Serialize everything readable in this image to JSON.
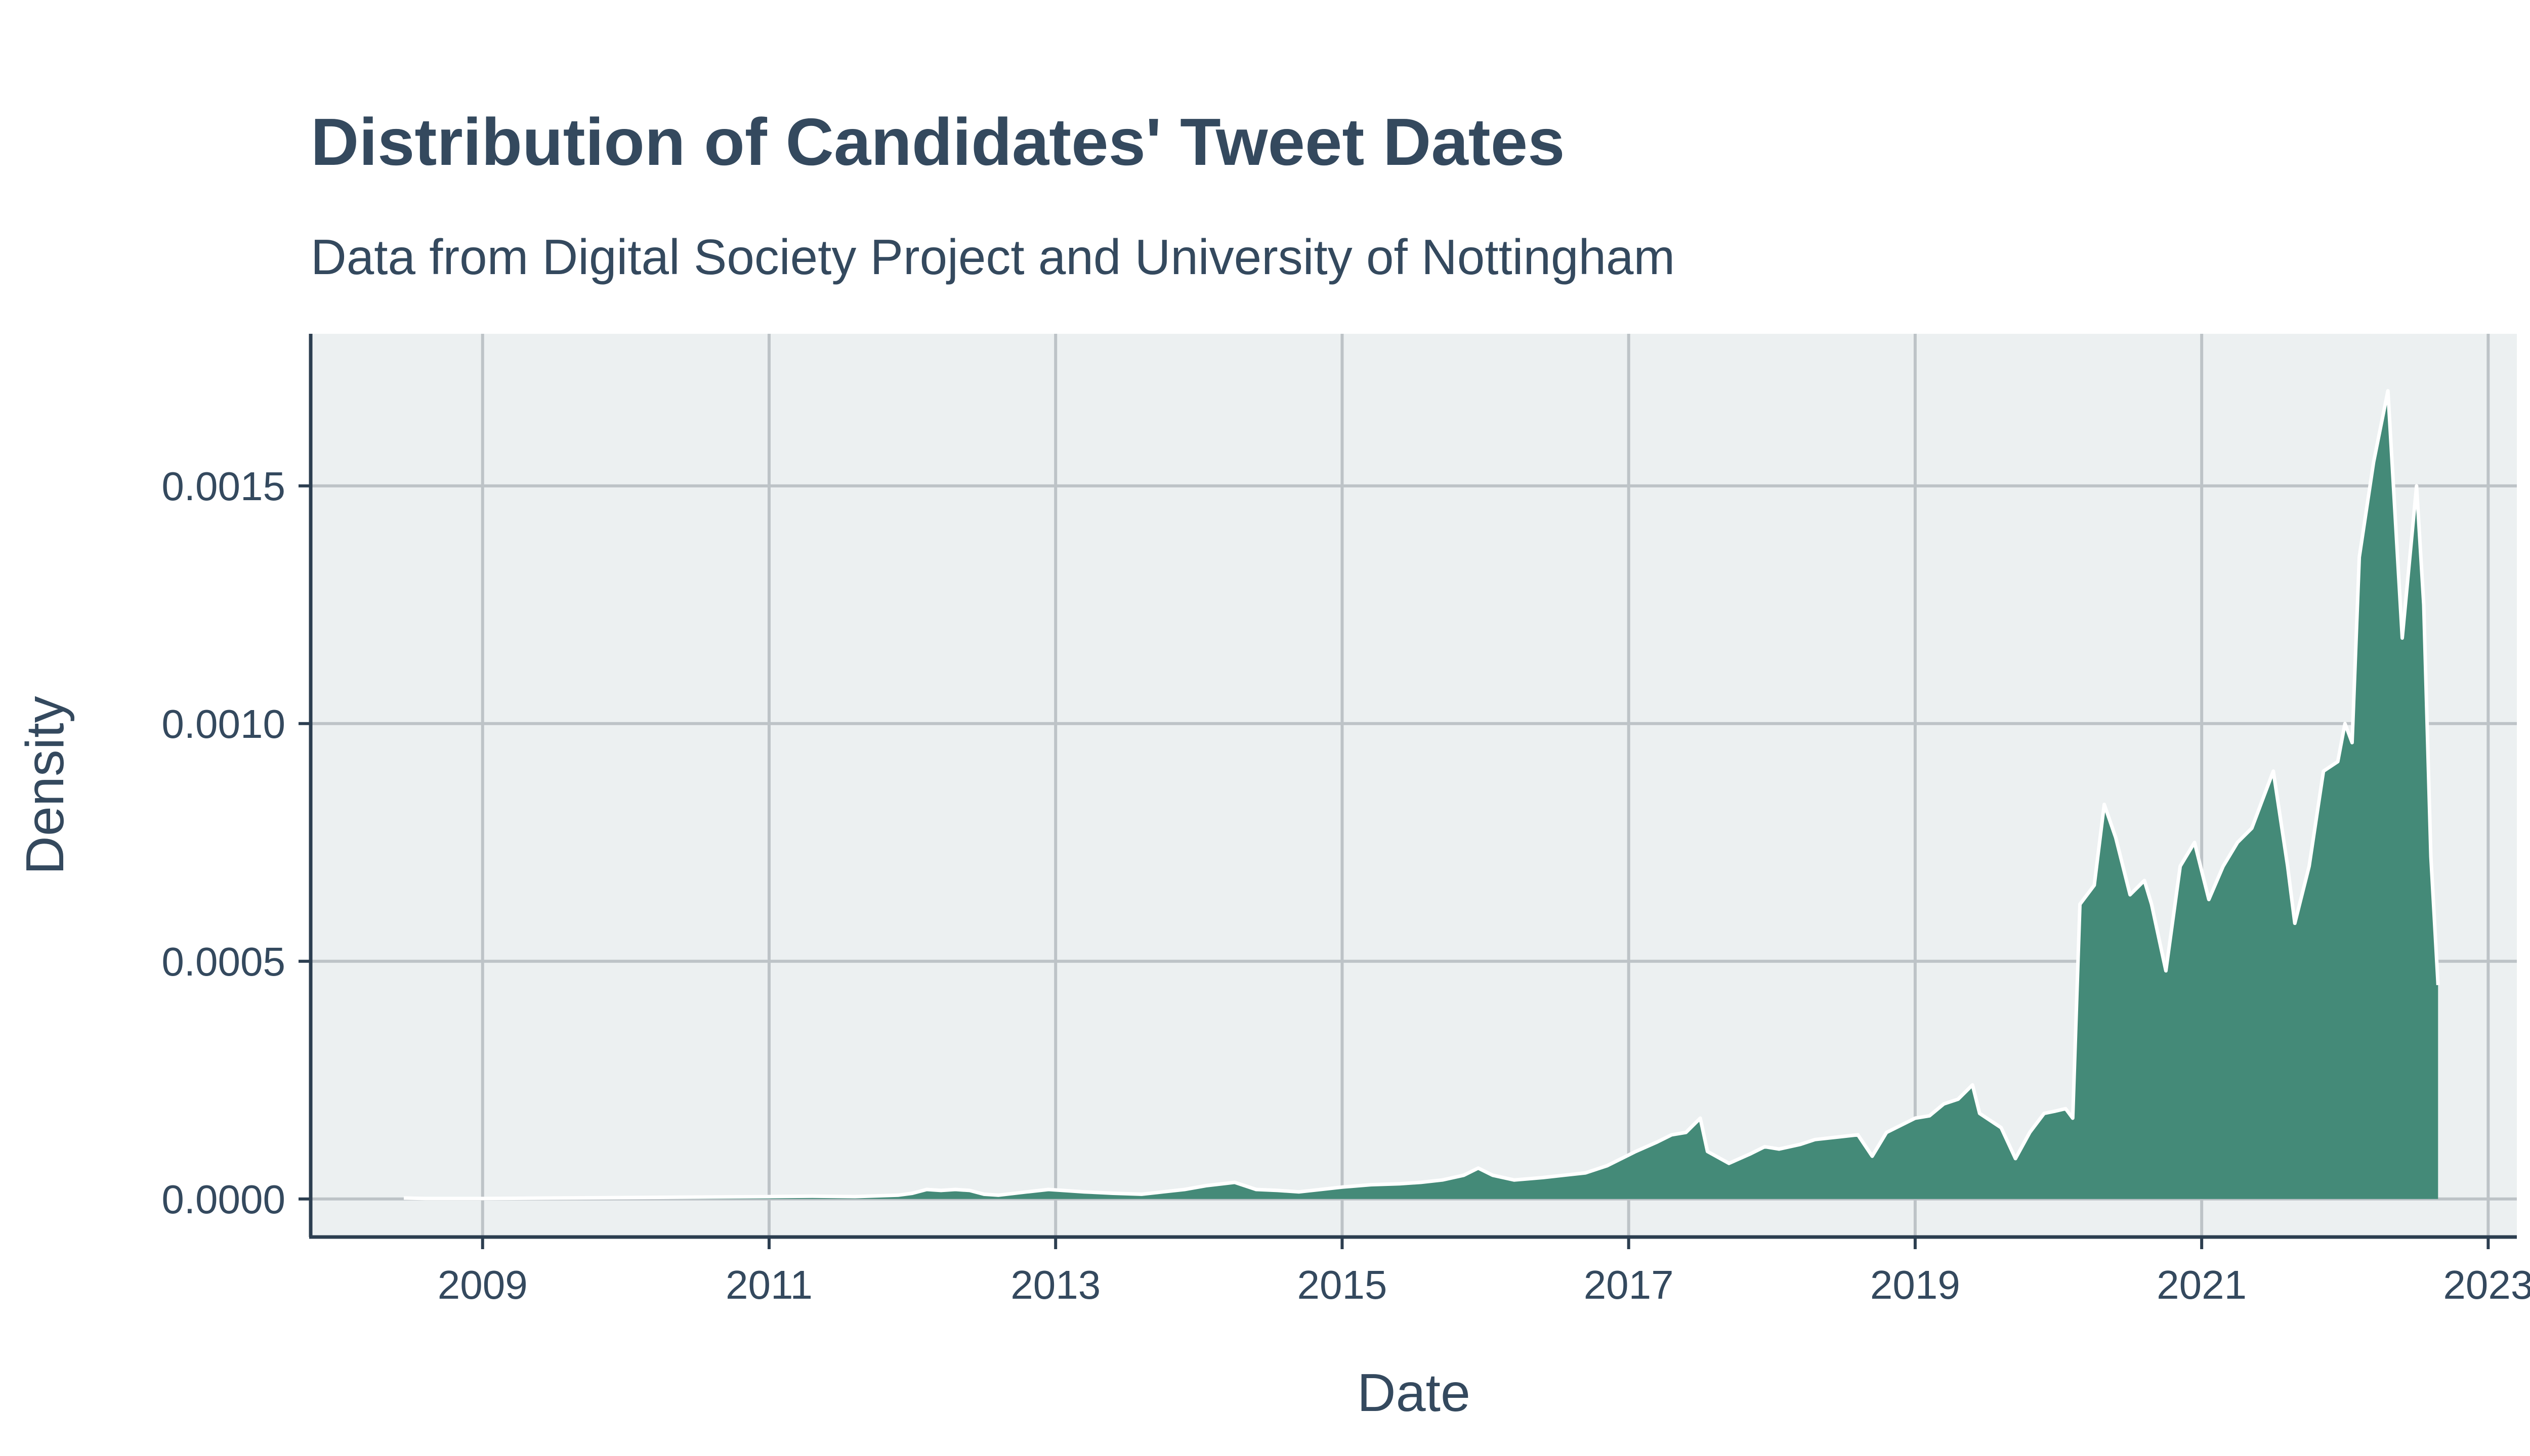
{
  "chart_data": {
    "type": "area",
    "title": "Distribution of Candidates' Tweet Dates",
    "subtitle": "Data from Digital Society Project and University of Nottingham",
    "xlabel": "Date",
    "ylabel": "Density",
    "xlim": [
      2007.8,
      2023.2
    ],
    "ylim": [
      -8e-05,
      0.00182
    ],
    "x_ticks": [
      "2009",
      "2011",
      "2013",
      "2015",
      "2017",
      "2019",
      "2021",
      "2023"
    ],
    "x_tick_values": [
      2009,
      2011,
      2013,
      2015,
      2017,
      2019,
      2021,
      2023
    ],
    "y_ticks": [
      "0.0000",
      "0.0005",
      "0.0010",
      "0.0015"
    ],
    "y_tick_values": [
      0,
      0.0005,
      0.001,
      0.0015
    ],
    "grid": true,
    "legend": "none",
    "fill_color": "#448a78",
    "outline_color": "#ffffff",
    "panel_color": "#ecf0f1",
    "series": [
      {
        "x": [
          2008.45,
          2008.6,
          2009.0,
          2009.5,
          2010.0,
          2010.5,
          2011.0,
          2011.3,
          2011.6,
          2011.9,
          2012.0,
          2012.1,
          2012.2,
          2012.3,
          2012.4,
          2012.5,
          2012.6,
          2012.8,
          2012.95,
          2013.05,
          2013.2,
          2013.4,
          2013.6,
          2013.75,
          2013.9,
          2014.05,
          2014.25,
          2014.4,
          2014.55,
          2014.7,
          2014.85,
          2015.0,
          2015.2,
          2015.4,
          2015.55,
          2015.7,
          2015.85,
          2015.95,
          2016.05,
          2016.2,
          2016.4,
          2016.55,
          2016.7,
          2016.85,
          2016.95,
          2017.05,
          2017.2,
          2017.3,
          2017.4,
          2017.5,
          2017.55,
          2017.7,
          2017.85,
          2017.95,
          2018.05,
          2018.2,
          2018.3,
          2018.45,
          2018.6,
          2018.7,
          2018.8,
          2018.9,
          2019.0,
          2019.1,
          2019.2,
          2019.3,
          2019.4,
          2019.45,
          2019.6,
          2019.7,
          2019.8,
          2019.9,
          2019.98,
          2020.05,
          2020.1,
          2020.15,
          2020.25,
          2020.32,
          2020.4,
          2020.5,
          2020.6,
          2020.65,
          2020.75,
          2020.85,
          2020.95,
          2021.05,
          2021.15,
          2021.25,
          2021.35,
          2021.5,
          2021.6,
          2021.65,
          2021.75,
          2021.85,
          2021.95,
          2022.0,
          2022.05,
          2022.1,
          2022.2,
          2022.3,
          2022.4,
          2022.5,
          2022.55,
          2022.6,
          2022.65
        ],
        "values": [
          2e-06,
          1e-06,
          1e-06,
          2e-06,
          3e-06,
          4e-06,
          5e-06,
          6e-06,
          5e-06,
          8e-06,
          1.2e-05,
          2e-05,
          1.8e-05,
          2e-05,
          1.8e-05,
          1e-05,
          8e-06,
          1.5e-05,
          2e-05,
          1.8e-05,
          1.5e-05,
          1.2e-05,
          1e-05,
          1.5e-05,
          2e-05,
          2.8e-05,
          3.5e-05,
          2e-05,
          1.8e-05,
          1.5e-05,
          2e-05,
          2.5e-05,
          3e-05,
          3.2e-05,
          3.5e-05,
          4e-05,
          5e-05,
          6.5e-05,
          5e-05,
          4e-05,
          4.5e-05,
          5e-05,
          5.5e-05,
          7e-05,
          8.5e-05,
          0.0001,
          0.00012,
          0.000135,
          0.00014,
          0.00017,
          0.0001,
          7.5e-05,
          9.5e-05,
          0.00011,
          0.000105,
          0.000115,
          0.000125,
          0.00013,
          0.000135,
          9e-05,
          0.00014,
          0.000155,
          0.00017,
          0.000175,
          0.0002,
          0.00021,
          0.00024,
          0.00018,
          0.00015,
          8.5e-05,
          0.00014,
          0.00018,
          0.000185,
          0.00019,
          0.00017,
          0.00062,
          0.00066,
          0.00083,
          0.00076,
          0.00064,
          0.00067,
          0.00062,
          0.00048,
          0.0007,
          0.00075,
          0.00063,
          0.0007,
          0.00075,
          0.00078,
          0.0009,
          0.0007,
          0.00058,
          0.0007,
          0.0009,
          0.00092,
          0.001,
          0.00096,
          0.00135,
          0.00155,
          0.0017,
          0.00118,
          0.0015,
          0.00125,
          0.00072,
          0.00045
        ]
      }
    ]
  }
}
